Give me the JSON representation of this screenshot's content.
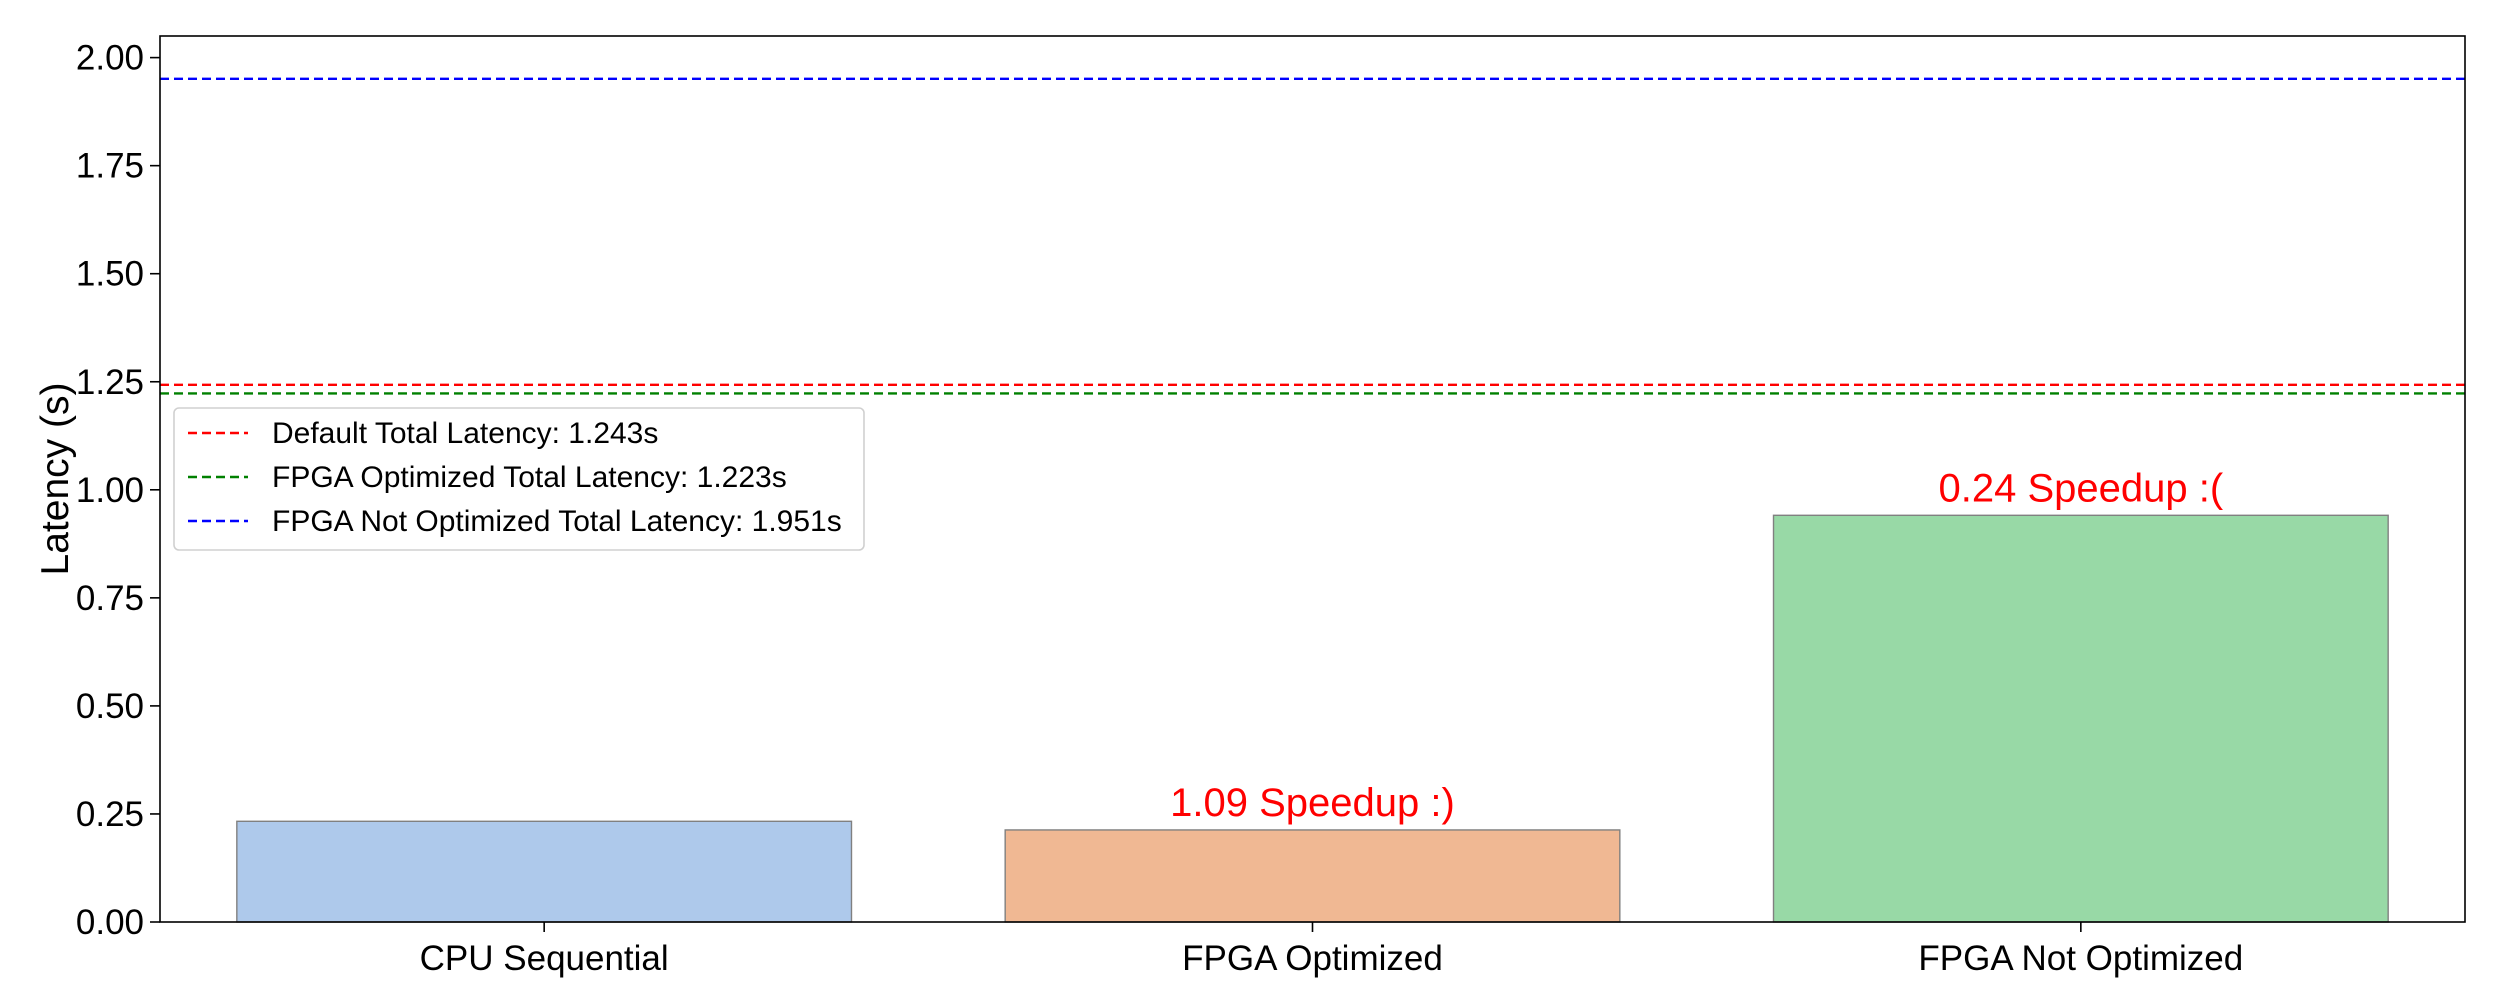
{
  "chart_data": {
    "type": "bar",
    "title": "",
    "xlabel": "",
    "ylabel": "Latency (s)",
    "ylim": [
      0,
      2.05
    ],
    "yticks": [
      "0.00",
      "0.25",
      "0.50",
      "0.75",
      "1.00",
      "1.25",
      "1.50",
      "1.75",
      "2.00"
    ],
    "ytick_values": [
      0,
      0.25,
      0.5,
      0.75,
      1.0,
      1.25,
      1.5,
      1.75,
      2.0
    ],
    "categories": [
      "CPU Sequential",
      "FPGA Optimized",
      "FPGA Not Optimized"
    ],
    "values": [
      0.233,
      0.213,
      0.941
    ],
    "bar_colors": [
      "#aec9eb",
      "#f0b893",
      "#98d9a6"
    ],
    "bar_edge_color": "#808080",
    "grid": false,
    "annotations": [
      {
        "category": "FPGA Optimized",
        "text": "1.09 Speedup :)",
        "color": "#ff0000"
      },
      {
        "category": "FPGA Not Optimized",
        "text": "0.24 Speedup :(",
        "color": "#ff0000"
      }
    ],
    "reference_lines": [
      {
        "label": "Default Total Latency: 1.243s",
        "value": 1.243,
        "color": "#ff0000",
        "style": "dashed"
      },
      {
        "label": "FPGA Optimized Total Latency: 1.223s",
        "value": 1.223,
        "color": "#008000",
        "style": "dashed"
      },
      {
        "label": "FPGA Not Optimized Total Latency: 1.951s",
        "value": 1.951,
        "color": "#0000ff",
        "style": "dashed"
      }
    ],
    "legend_placement": "center-left"
  }
}
